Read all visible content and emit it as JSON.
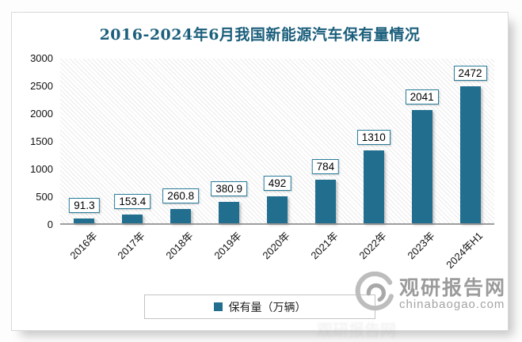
{
  "chart_data": {
    "type": "bar",
    "title": "2016-2024年6月我国新能源汽车保有量情况",
    "categories": [
      "2016年",
      "2017年",
      "2018年",
      "2019年",
      "2020年",
      "2021年",
      "2022年",
      "2023年",
      "2024年H1"
    ],
    "values": [
      91.3,
      153.4,
      260.8,
      380.9,
      492,
      784,
      1310,
      2041,
      2472
    ],
    "value_labels": [
      "91.3",
      "153.4",
      "260.8",
      "380.9",
      "492",
      "784",
      "1310",
      "2041",
      "2472"
    ],
    "yticks": [
      0,
      500,
      1000,
      1500,
      2000,
      2500,
      3000
    ],
    "ylim": [
      0,
      3000
    ],
    "xlabel": "",
    "ylabel": "",
    "grid": false,
    "legend_label": "保有量（万辆）",
    "legend_position": "bottom",
    "bar_color": "#226e8e",
    "title_color": "#1b5f7c",
    "label_box_border_color": "#2a7d9c",
    "axis_line_color": "#9e9e9e"
  },
  "branding": {
    "logo_name": "观研报告网",
    "logo_url_text": "chinabaogao.com",
    "logo_color": "#9b9b9b",
    "ghost_watermark": "观研报告网"
  }
}
